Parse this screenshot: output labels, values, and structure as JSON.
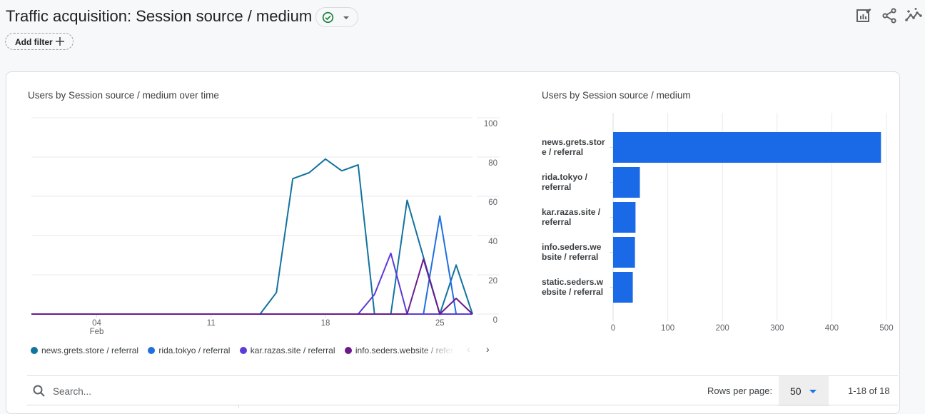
{
  "header": {
    "title": "Traffic acquisition: Session source / medium",
    "status_icon": "check-circle-icon",
    "status_color": "#188038",
    "add_filter_label": "Add filter",
    "icons": [
      "edit-report-icon",
      "share-icon",
      "insights-icon"
    ]
  },
  "line_chart_title": "Users by Session source / medium over time",
  "bar_chart_title": "Users by Session source / medium",
  "legend": {
    "items": [
      {
        "label": "news.grets.store / referral",
        "color": "#12739f"
      },
      {
        "label": "rida.tokyo / referral",
        "color": "#1f6fe0"
      },
      {
        "label": "kar.razas.site / referral",
        "color": "#5b3bd9"
      },
      {
        "label": "info.seders.website / referral",
        "color": "#6b1a8e"
      }
    ],
    "prev": "‹",
    "next": "›"
  },
  "table_controls": {
    "search_placeholder": "Search...",
    "rows_per_page_label": "Rows per page:",
    "rows_per_page_value": "50",
    "range_text": "1-18 of 18"
  },
  "chart_data": [
    {
      "type": "line",
      "title": "Users by Session source / medium over time",
      "xlabel": "",
      "ylabel": "",
      "x": [
        "Jan 31",
        "Feb 1",
        "Feb 2",
        "Feb 3",
        "Feb 4",
        "Feb 5",
        "Feb 6",
        "Feb 7",
        "Feb 8",
        "Feb 9",
        "Feb 10",
        "Feb 11",
        "Feb 12",
        "Feb 13",
        "Feb 14",
        "Feb 15",
        "Feb 16",
        "Feb 17",
        "Feb 18",
        "Feb 19",
        "Feb 20",
        "Feb 21",
        "Feb 22",
        "Feb 23",
        "Feb 24",
        "Feb 25",
        "Feb 26",
        "Feb 27"
      ],
      "x_ticks": [
        {
          "index": 4,
          "label": "04",
          "sublabel": "Feb"
        },
        {
          "index": 11,
          "label": "11",
          "sublabel": ""
        },
        {
          "index": 18,
          "label": "18",
          "sublabel": ""
        },
        {
          "index": 25,
          "label": "25",
          "sublabel": ""
        }
      ],
      "ylim": [
        0,
        100
      ],
      "y_ticks": [
        0,
        20,
        40,
        60,
        80,
        100
      ],
      "y_axis_side": "right",
      "grid": true,
      "legend_position": "bottom",
      "series": [
        {
          "name": "news.grets.store / referral",
          "color": "#12739f",
          "values": [
            0,
            0,
            0,
            0,
            0,
            0,
            0,
            0,
            0,
            0,
            0,
            0,
            0,
            0,
            0,
            11,
            69,
            72,
            79,
            73,
            76,
            0,
            0,
            58,
            29,
            0,
            25,
            0
          ]
        },
        {
          "name": "rida.tokyo / referral",
          "color": "#1f6fe0",
          "values": [
            0,
            0,
            0,
            0,
            0,
            0,
            0,
            0,
            0,
            0,
            0,
            0,
            0,
            0,
            0,
            0,
            0,
            0,
            0,
            0,
            0,
            0,
            0,
            0,
            0,
            50,
            0,
            0
          ]
        },
        {
          "name": "kar.razas.site / referral",
          "color": "#5b3bd9",
          "values": [
            0,
            0,
            0,
            0,
            0,
            0,
            0,
            0,
            0,
            0,
            0,
            0,
            0,
            0,
            0,
            0,
            0,
            0,
            0,
            0,
            0,
            10,
            31,
            0,
            0,
            0,
            0,
            0
          ]
        },
        {
          "name": "info.seders.website / referral",
          "color": "#6b1a8e",
          "values": [
            0,
            0,
            0,
            0,
            0,
            0,
            0,
            0,
            0,
            0,
            0,
            0,
            0,
            0,
            0,
            0,
            0,
            0,
            0,
            0,
            0,
            0,
            0,
            0,
            28,
            0,
            8,
            0
          ]
        }
      ]
    },
    {
      "type": "bar",
      "orientation": "horizontal",
      "title": "Users by Session source / medium",
      "categories": [
        [
          "news.grets.stor",
          "e / referral"
        ],
        [
          "rida.tokyo /",
          "referral"
        ],
        [
          "kar.razas.site /",
          "referral"
        ],
        [
          "info.seders.we",
          "bsite / referral"
        ],
        [
          "static.seders.w",
          "ebsite / referral"
        ]
      ],
      "category_names": [
        "news.grets.store / referral",
        "rida.tokyo / referral",
        "kar.razas.site / referral",
        "info.seders.website / referral",
        "static.seders.website / referral"
      ],
      "values": [
        490,
        49,
        41,
        40,
        36
      ],
      "xlim": [
        0,
        500
      ],
      "x_ticks": [
        0,
        100,
        200,
        300,
        400,
        500
      ],
      "bar_color": "#1a69e6",
      "grid": true
    }
  ]
}
